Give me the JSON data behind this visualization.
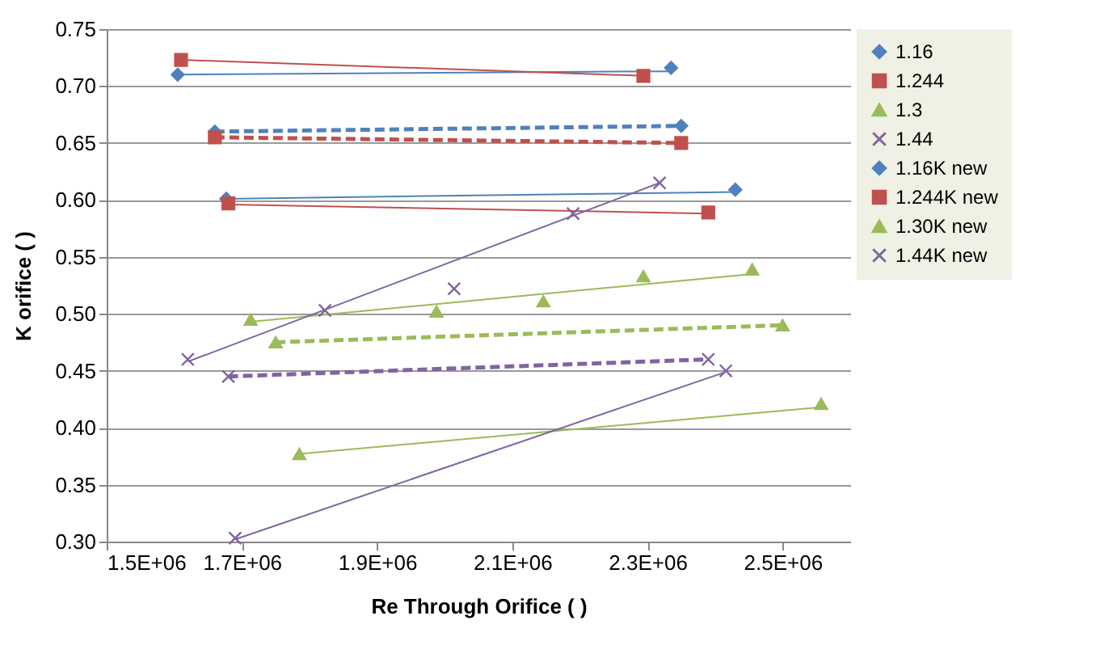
{
  "chart_data": {
    "type": "scatter",
    "xlabel": "Re Through Orifice ( )",
    "ylabel": "K orifice ( )",
    "xlim": [
      1500000,
      2600000
    ],
    "xticks": [
      {
        "value": 1500000,
        "label": "1.5E+06"
      },
      {
        "value": 1700000,
        "label": "1.7E+06"
      },
      {
        "value": 1900000,
        "label": "1.9E+06"
      },
      {
        "value": 2100000,
        "label": "2.1E+06"
      },
      {
        "value": 2300000,
        "label": "2.3E+06"
      },
      {
        "value": 2500000,
        "label": "2.5E+06"
      }
    ],
    "ylim": [
      0.3,
      0.75
    ],
    "yticks": [
      {
        "value": 0.3,
        "label": "0.30"
      },
      {
        "value": 0.35,
        "label": "0.35"
      },
      {
        "value": 0.4,
        "label": "0.40"
      },
      {
        "value": 0.45,
        "label": "0.45"
      },
      {
        "value": 0.5,
        "label": "0.50"
      },
      {
        "value": 0.55,
        "label": "0.55"
      },
      {
        "value": 0.6,
        "label": "0.60"
      },
      {
        "value": 0.65,
        "label": "0.65"
      },
      {
        "value": 0.7,
        "label": "0.70"
      },
      {
        "value": 0.75,
        "label": "0.75"
      }
    ],
    "grid": "y",
    "legend": "right",
    "series": [
      {
        "name": "1.16",
        "type": "scatter",
        "marker": "diamond",
        "color": "#4f81bd",
        "x": [
          1605000,
          2335000,
          1677000,
          2430000
        ],
        "values": [
          0.71,
          0.716,
          0.601,
          0.609
        ]
      },
      {
        "name": "1.244",
        "type": "scatter",
        "marker": "square",
        "color": "#c0504d",
        "x": [
          1610000,
          2294000,
          1680000,
          2390000
        ],
        "values": [
          0.723,
          0.709,
          0.597,
          0.589
        ]
      },
      {
        "name": "1.3",
        "type": "scatter",
        "marker": "triangle",
        "color": "#9bbb59",
        "x": [
          1713000,
          1988000,
          2146000,
          2294000,
          2455000,
          1785000,
          2557000
        ],
        "values": [
          0.495,
          0.502,
          0.511,
          0.533,
          0.539,
          0.377,
          0.421
        ]
      },
      {
        "name": "1.44",
        "type": "scatter",
        "marker": "cross",
        "color": "#8064a2",
        "x": [
          1620000,
          1823000,
          2014000,
          2190000,
          2318000,
          1690000,
          2416000
        ],
        "values": [
          0.46,
          0.503,
          0.522,
          0.588,
          0.615,
          0.303,
          0.45
        ]
      },
      {
        "name": "1.16K new",
        "type": "line",
        "marker": "diamond",
        "line_style": "dashed",
        "color": "#4f81bd",
        "x": [
          1660000,
          2350000
        ],
        "values": [
          0.66,
          0.665
        ]
      },
      {
        "name": "1.244K new",
        "type": "line",
        "marker": "square",
        "line_style": "dashed",
        "color": "#c0504d",
        "x": [
          1660000,
          2350000
        ],
        "values": [
          0.655,
          0.65
        ]
      },
      {
        "name": "1.30K new",
        "type": "line",
        "marker": "triangle",
        "line_style": "dashed",
        "color": "#9bbb59",
        "x": [
          1750000,
          2500000
        ],
        "values": [
          0.475,
          0.49
        ]
      },
      {
        "name": "1.44K new",
        "type": "line",
        "marker": "cross",
        "line_style": "dashed",
        "color": "#8064a2",
        "x": [
          1680000,
          2390000
        ],
        "values": [
          0.445,
          0.46
        ]
      },
      {
        "type": "line",
        "marker": "none",
        "line_style": "solid",
        "color": "#4f81bd",
        "x": [
          1605000,
          2335000
        ],
        "values": [
          0.71,
          0.713
        ]
      },
      {
        "type": "line",
        "marker": "none",
        "line_style": "solid",
        "color": "#4f81bd",
        "x": [
          1677000,
          2430000
        ],
        "values": [
          0.601,
          0.607
        ]
      },
      {
        "type": "line",
        "marker": "none",
        "line_style": "solid",
        "color": "#c0504d",
        "x": [
          1610000,
          2294000
        ],
        "values": [
          0.723,
          0.709
        ]
      },
      {
        "type": "line",
        "marker": "none",
        "line_style": "solid",
        "color": "#c0504d",
        "x": [
          1680000,
          2390000
        ],
        "values": [
          0.596,
          0.588
        ]
      },
      {
        "type": "line",
        "marker": "none",
        "line_style": "solid",
        "color": "#9bbb59",
        "x": [
          1713000,
          2455000
        ],
        "values": [
          0.493,
          0.535
        ]
      },
      {
        "type": "line",
        "marker": "none",
        "line_style": "solid",
        "color": "#9bbb59",
        "x": [
          1785000,
          2557000
        ],
        "values": [
          0.377,
          0.418
        ]
      },
      {
        "type": "line",
        "marker": "none",
        "line_style": "solid",
        "color": "#8064a2",
        "x": [
          1620000,
          2318000
        ],
        "values": [
          0.458,
          0.615
        ]
      },
      {
        "type": "line",
        "marker": "none",
        "line_style": "solid",
        "color": "#8064a2",
        "x": [
          1690000,
          2416000
        ],
        "values": [
          0.302,
          0.449
        ]
      }
    ]
  }
}
